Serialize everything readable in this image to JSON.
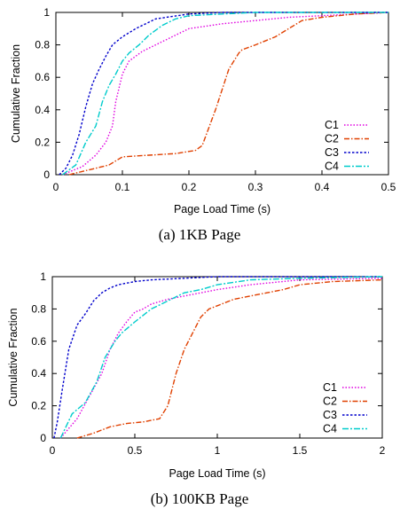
{
  "chart_data": [
    {
      "type": "line",
      "caption": "(a)  1KB Page",
      "xlabel": "Page Load Time (s)",
      "ylabel": "Cumulative Fraction",
      "xlim": [
        0,
        0.5
      ],
      "ylim": [
        0,
        1
      ],
      "xticks": [
        "0",
        "0.1",
        "0.2",
        "0.3",
        "0.4",
        "0.5"
      ],
      "yticks": [
        "0",
        "0.2",
        "0.4",
        "0.6",
        "0.8",
        "1"
      ],
      "legend": "bottom-right",
      "series": [
        {
          "name": "C1",
          "color": "#e000e0",
          "dash": "1.5,2",
          "x": [
            0.01,
            0.04,
            0.06,
            0.075,
            0.085,
            0.09,
            0.1,
            0.11,
            0.13,
            0.15,
            0.2,
            0.25,
            0.3,
            0.35,
            0.4,
            0.45,
            0.5
          ],
          "y": [
            0,
            0.05,
            0.12,
            0.2,
            0.3,
            0.45,
            0.62,
            0.7,
            0.76,
            0.8,
            0.9,
            0.93,
            0.95,
            0.97,
            0.98,
            0.99,
            1.0
          ]
        },
        {
          "name": "C2",
          "color": "#e04000",
          "dash": "6,2,1.5,2",
          "x": [
            0.02,
            0.04,
            0.06,
            0.08,
            0.1,
            0.14,
            0.18,
            0.21,
            0.22,
            0.24,
            0.26,
            0.275,
            0.28,
            0.3,
            0.33,
            0.35,
            0.37,
            0.4,
            0.45,
            0.5
          ],
          "y": [
            0,
            0.02,
            0.04,
            0.06,
            0.11,
            0.12,
            0.13,
            0.15,
            0.18,
            0.4,
            0.65,
            0.75,
            0.77,
            0.8,
            0.85,
            0.9,
            0.95,
            0.97,
            0.99,
            1.0
          ]
        },
        {
          "name": "C3",
          "color": "#0000cc",
          "dash": "2.5,2",
          "x": [
            0.005,
            0.015,
            0.025,
            0.035,
            0.045,
            0.055,
            0.065,
            0.075,
            0.085,
            0.1,
            0.12,
            0.15,
            0.2,
            0.25,
            0.3,
            0.4,
            0.5
          ],
          "y": [
            0,
            0.04,
            0.12,
            0.25,
            0.42,
            0.56,
            0.65,
            0.73,
            0.8,
            0.85,
            0.9,
            0.96,
            0.99,
            1.0,
            1.0,
            1.0,
            1.0
          ]
        },
        {
          "name": "C4",
          "color": "#00cccc",
          "dash": "7,2,2,2",
          "x": [
            0.01,
            0.03,
            0.045,
            0.06,
            0.07,
            0.08,
            0.09,
            0.1,
            0.11,
            0.125,
            0.14,
            0.16,
            0.18,
            0.2,
            0.25,
            0.3,
            0.5
          ],
          "y": [
            0,
            0.06,
            0.2,
            0.3,
            0.45,
            0.55,
            0.62,
            0.7,
            0.75,
            0.8,
            0.86,
            0.92,
            0.96,
            0.98,
            0.99,
            1.0,
            1.0
          ]
        }
      ]
    },
    {
      "type": "line",
      "caption": "(b)  100KB Page",
      "xlabel": "Page Load Time (s)",
      "ylabel": "Cumulative Fraction",
      "xlim": [
        0,
        2
      ],
      "ylim": [
        0,
        1
      ],
      "xticks": [
        "0",
        "0.5",
        "1",
        "1.5",
        "2"
      ],
      "yticks": [
        "0",
        "0.2",
        "0.4",
        "0.6",
        "0.8",
        "1"
      ],
      "legend": "bottom-right",
      "series": [
        {
          "name": "C1",
          "color": "#e000e0",
          "dash": "1.5,2",
          "x": [
            0.05,
            0.15,
            0.22,
            0.3,
            0.35,
            0.4,
            0.45,
            0.5,
            0.55,
            0.6,
            0.7,
            0.8,
            1.0,
            1.2,
            1.5,
            2.0
          ],
          "y": [
            0,
            0.12,
            0.25,
            0.4,
            0.55,
            0.65,
            0.72,
            0.78,
            0.8,
            0.83,
            0.86,
            0.88,
            0.92,
            0.95,
            0.98,
            0.99
          ]
        },
        {
          "name": "C2",
          "color": "#e04000",
          "dash": "6,2,1.5,2",
          "x": [
            0.15,
            0.25,
            0.35,
            0.45,
            0.55,
            0.65,
            0.7,
            0.75,
            0.8,
            0.85,
            0.9,
            0.95,
            1.0,
            1.1,
            1.2,
            1.3,
            1.4,
            1.5,
            1.7,
            2.0
          ],
          "y": [
            0,
            0.03,
            0.07,
            0.09,
            0.1,
            0.12,
            0.2,
            0.4,
            0.55,
            0.65,
            0.75,
            0.8,
            0.82,
            0.86,
            0.88,
            0.9,
            0.92,
            0.95,
            0.97,
            0.98
          ]
        },
        {
          "name": "C3",
          "color": "#0000cc",
          "dash": "2.5,2",
          "x": [
            0.01,
            0.03,
            0.06,
            0.1,
            0.15,
            0.2,
            0.25,
            0.3,
            0.35,
            0.4,
            0.5,
            0.6,
            0.8,
            1.0,
            1.2,
            1.5,
            2.0
          ],
          "y": [
            0,
            0.1,
            0.3,
            0.55,
            0.7,
            0.77,
            0.85,
            0.9,
            0.93,
            0.95,
            0.97,
            0.98,
            0.99,
            1.0,
            1.0,
            1.0,
            1.0
          ]
        },
        {
          "name": "C4",
          "color": "#00cccc",
          "dash": "7,2,2,2",
          "x": [
            0.05,
            0.12,
            0.2,
            0.27,
            0.32,
            0.38,
            0.42,
            0.5,
            0.6,
            0.7,
            0.8,
            0.9,
            1.0,
            1.2,
            1.5,
            2.0
          ],
          "y": [
            0,
            0.15,
            0.22,
            0.35,
            0.5,
            0.6,
            0.65,
            0.72,
            0.8,
            0.85,
            0.9,
            0.92,
            0.95,
            0.98,
            0.99,
            1.0
          ]
        }
      ]
    }
  ]
}
